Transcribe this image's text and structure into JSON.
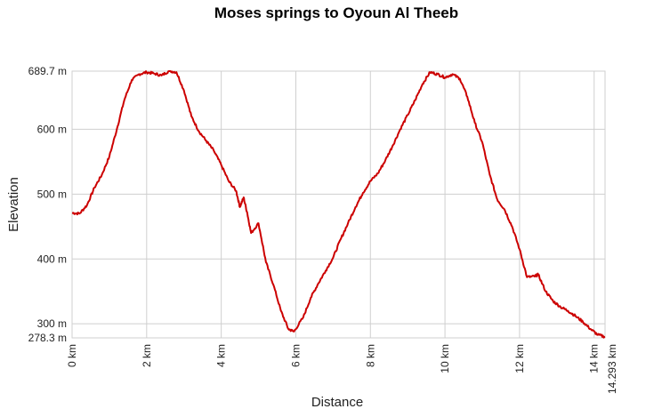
{
  "chart_data": {
    "type": "line",
    "title": "Moses springs to Oyoun Al Theeb",
    "xlabel": "Distance",
    "ylabel": "Elevation",
    "xlim": [
      0,
      14.293
    ],
    "ylim": [
      278.3,
      689.7
    ],
    "x_ticks": [
      {
        "value": 0,
        "label": "0 km"
      },
      {
        "value": 2,
        "label": "2 km"
      },
      {
        "value": 4,
        "label": "4 km"
      },
      {
        "value": 6,
        "label": "6 km"
      },
      {
        "value": 8,
        "label": "8 km"
      },
      {
        "value": 10,
        "label": "10 km"
      },
      {
        "value": 12,
        "label": "12 km"
      },
      {
        "value": 14,
        "label": "14 km"
      },
      {
        "value": 14.293,
        "label": "14.293 km"
      }
    ],
    "y_ticks": [
      {
        "value": 278.3,
        "label": "278.3 m"
      },
      {
        "value": 300,
        "label": "300 m"
      },
      {
        "value": 400,
        "label": "400 m"
      },
      {
        "value": 500,
        "label": "500 m"
      },
      {
        "value": 600,
        "label": "600 m"
      },
      {
        "value": 689.7,
        "label": "689.7 m"
      }
    ],
    "grid": true,
    "series": [
      {
        "color": "#cc0000",
        "x": [
          0,
          0.2,
          0.4,
          0.6,
          0.8,
          1.0,
          1.2,
          1.4,
          1.6,
          1.8,
          2.0,
          2.2,
          2.4,
          2.6,
          2.8,
          3.0,
          3.2,
          3.4,
          3.6,
          3.8,
          4.0,
          4.2,
          4.4,
          4.5,
          4.6,
          4.7,
          4.8,
          5.0,
          5.2,
          5.4,
          5.6,
          5.8,
          5.95,
          6.2,
          6.4,
          6.6,
          6.8,
          7.0,
          7.2,
          7.4,
          7.6,
          7.8,
          8.0,
          8.2,
          8.4,
          8.6,
          8.8,
          9.0,
          9.2,
          9.4,
          9.6,
          9.8,
          10.0,
          10.2,
          10.4,
          10.6,
          10.8,
          11.0,
          11.2,
          11.4,
          11.6,
          11.8,
          12.0,
          12.2,
          12.4,
          12.5,
          12.7,
          12.9,
          13.1,
          13.3,
          13.5,
          13.7,
          13.9,
          14.1,
          14.293
        ],
        "y": [
          471,
          470,
          483,
          510,
          530,
          558,
          600,
          645,
          676,
          685,
          688,
          686,
          683,
          690,
          688,
          660,
          620,
          597,
          582,
          567,
          545,
          520,
          505,
          480,
          495,
          470,
          440,
          455,
          395,
          360,
          320,
          292,
          288,
          310,
          340,
          362,
          382,
          402,
          430,
          455,
          480,
          502,
          520,
          532,
          552,
          575,
          600,
          622,
          645,
          670,
          688,
          685,
          680,
          685,
          678,
          650,
          610,
          580,
          530,
          492,
          476,
          450,
          415,
          372,
          373,
          376,
          350,
          335,
          326,
          320,
          312,
          303,
          292,
          283,
          280
        ]
      }
    ]
  }
}
